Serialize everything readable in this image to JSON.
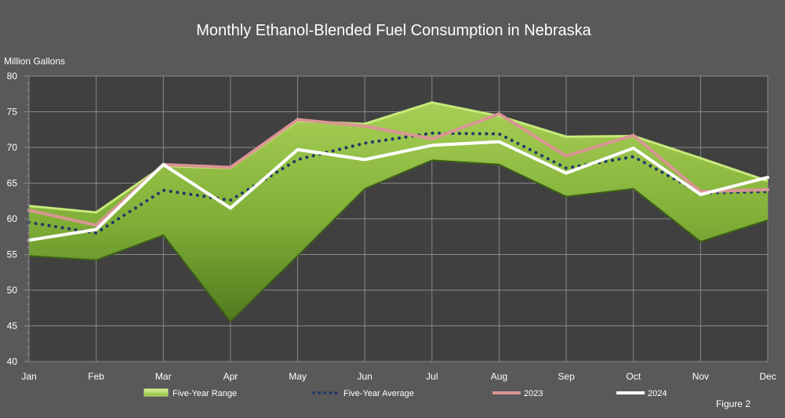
{
  "chart_data": {
    "type": "area",
    "title": "Monthly Ethanol-Blended Fuel Consumption in Nebraska",
    "ylabel": "Million Gallons",
    "xlabel": "",
    "ylim": [
      40,
      80
    ],
    "yticks": [
      40,
      45,
      50,
      55,
      60,
      65,
      70,
      75,
      80
    ],
    "categories": [
      "Jan",
      "Feb",
      "Mar",
      "Apr",
      "May",
      "Jun",
      "Jul",
      "Aug",
      "Sep",
      "Oct",
      "Nov",
      "Dec"
    ],
    "range": {
      "name": "Five-Year Range",
      "low": [
        54.8,
        54.2,
        57.7,
        45.6,
        54.8,
        64.2,
        68.2,
        67.6,
        63.1,
        64.2,
        56.8,
        59.8
      ],
      "high": [
        61.8,
        60.9,
        67.4,
        67.1,
        73.7,
        73.3,
        76.3,
        74.4,
        71.5,
        71.6,
        68.5,
        65.3
      ]
    },
    "series": [
      {
        "name": "Five-Year Average",
        "values": [
          59.5,
          58.0,
          64.0,
          62.6,
          68.3,
          70.6,
          72.0,
          71.9,
          67.1,
          68.7,
          63.6,
          63.8
        ]
      },
      {
        "name": "2023",
        "values": [
          61.2,
          59.1,
          67.6,
          67.2,
          73.9,
          73.0,
          71.2,
          74.7,
          68.8,
          71.7,
          63.8,
          64.1
        ]
      },
      {
        "name": "2024",
        "values": [
          57.0,
          58.5,
          67.6,
          61.5,
          69.7,
          68.3,
          70.3,
          70.8,
          66.4,
          69.9,
          63.4,
          65.8
        ]
      }
    ],
    "grid": true,
    "legend_position": "bottom",
    "colors": {
      "background": "#595959",
      "plot_background": "#404040",
      "gridline": "#8a8a8a",
      "range_fill": "#8dbb3e",
      "range_edge": "#c6ea7a",
      "average": "#1f3a68",
      "y2023": "#d99594",
      "y2024": "#ffffff"
    }
  },
  "footer": {
    "figure_label": "Figure 2"
  }
}
